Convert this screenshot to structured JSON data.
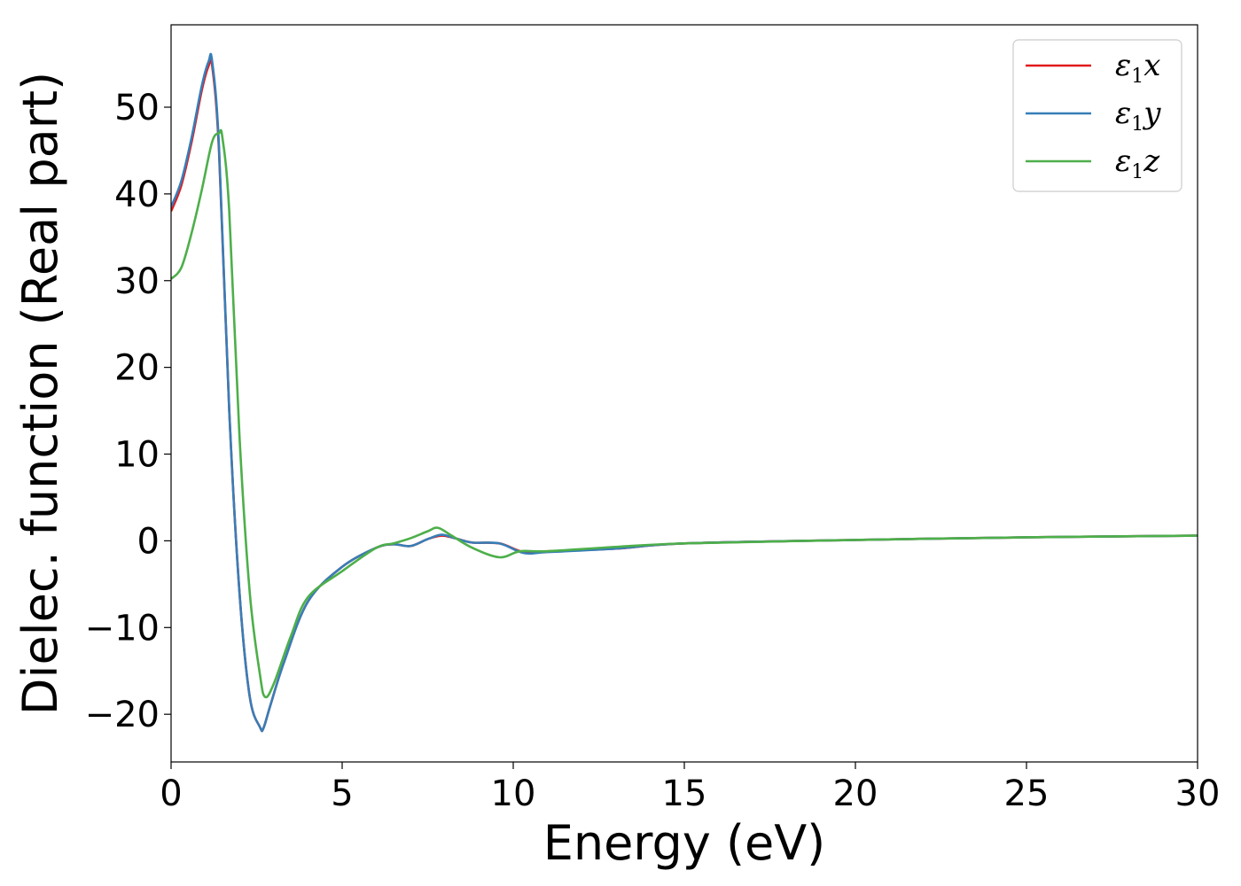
{
  "chart_data": {
    "type": "line",
    "title": "",
    "xlabel": "Energy (eV)",
    "ylabel": "Dielec. function (Real part)",
    "xlim": [
      0,
      30
    ],
    "ylim": [
      -25.5,
      59.5
    ],
    "xticks": [
      0,
      5,
      10,
      15,
      20,
      25,
      30
    ],
    "xtick_labels": [
      "0",
      "5",
      "10",
      "15",
      "20",
      "25",
      "30"
    ],
    "yticks": [
      -20,
      -10,
      0,
      10,
      20,
      30,
      40,
      50
    ],
    "ytick_labels": [
      "−20",
      "−10",
      "0",
      "10",
      "20",
      "30",
      "40",
      "50"
    ],
    "grid": false,
    "legend": "top-right",
    "series": [
      {
        "name": "ε1x",
        "label_base": "ε",
        "label_sub": "1",
        "label_var": "x",
        "color": "#e41a1c",
        "x": [
          0,
          0.3,
          0.6,
          0.9,
          1.1,
          1.2,
          1.4,
          1.7,
          2.0,
          2.3,
          2.6,
          2.7,
          2.9,
          3.3,
          4.0,
          5.0,
          6.0,
          6.5,
          7.0,
          7.5,
          7.9,
          8.3,
          8.8,
          9.6,
          10.3,
          11.0,
          13.0,
          15.0,
          20.0,
          25.0,
          30.0
        ],
        "y": [
          38,
          41,
          46,
          52,
          54.8,
          54.8,
          45,
          15,
          -6,
          -18,
          -21.5,
          -21.6,
          -19,
          -14,
          -7,
          -3,
          -0.8,
          -0.4,
          -0.6,
          0.2,
          0.6,
          0.3,
          -0.2,
          -0.3,
          -1.3,
          -1.2,
          -0.9,
          -0.3,
          0.1,
          0.4,
          0.6
        ]
      },
      {
        "name": "ε1y",
        "label_base": "ε",
        "label_sub": "1",
        "label_var": "y",
        "color": "#377eb8",
        "x": [
          0,
          0.3,
          0.6,
          0.9,
          1.1,
          1.2,
          1.4,
          1.7,
          2.0,
          2.3,
          2.6,
          2.7,
          2.9,
          3.3,
          4.0,
          5.0,
          6.0,
          6.5,
          7.0,
          7.5,
          7.9,
          8.3,
          8.8,
          9.6,
          10.3,
          11.0,
          13.0,
          15.0,
          20.0,
          25.0,
          30.0
        ],
        "y": [
          38.5,
          41.5,
          46.5,
          52.5,
          55.3,
          55.3,
          45.5,
          15,
          -6,
          -18,
          -21.5,
          -21.6,
          -19,
          -14,
          -7,
          -3,
          -0.8,
          -0.4,
          -0.6,
          0.2,
          0.7,
          0.3,
          -0.2,
          -0.3,
          -1.4,
          -1.3,
          -0.9,
          -0.3,
          0.1,
          0.4,
          0.6
        ]
      },
      {
        "name": "ε1z",
        "label_base": "ε",
        "label_sub": "1",
        "label_var": "z",
        "color": "#4daf4a",
        "x": [
          0,
          0.3,
          0.6,
          0.9,
          1.2,
          1.4,
          1.5,
          1.7,
          2.0,
          2.3,
          2.6,
          2.75,
          3.0,
          3.5,
          4.0,
          5.0,
          6.0,
          6.5,
          7.0,
          7.5,
          7.8,
          8.2,
          8.8,
          9.6,
          10.2,
          11.0,
          13.0,
          15.0,
          20.0,
          25.0,
          30.0
        ],
        "y": [
          30.2,
          31.5,
          35.5,
          40.5,
          46,
          47,
          46.5,
          38,
          12,
          -6,
          -15.5,
          -18,
          -16.5,
          -11,
          -6.5,
          -3.5,
          -0.8,
          -0.3,
          0.3,
          1.1,
          1.5,
          0.6,
          -0.8,
          -1.9,
          -1.2,
          -1.2,
          -0.7,
          -0.3,
          0.1,
          0.4,
          0.6
        ]
      }
    ]
  }
}
